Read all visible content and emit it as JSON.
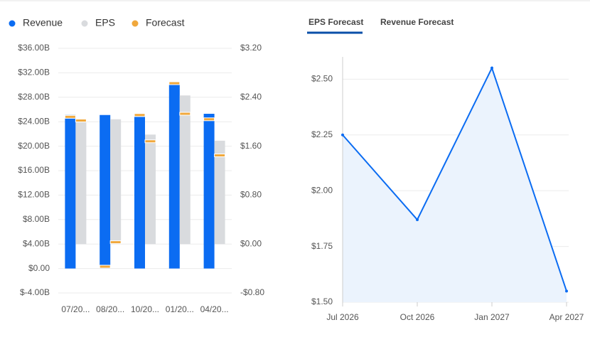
{
  "chart_data": [
    {
      "type": "bar",
      "categories": [
        "07/20...",
        "08/20...",
        "10/20...",
        "01/20...",
        "04/20..."
      ],
      "series": [
        {
          "name": "Revenue",
          "color": "#0b6cf2",
          "values": [
            25.1,
            25.1,
            24.8,
            30.2,
            25.3
          ]
        },
        {
          "name": "EPS",
          "color": "#d9dbde",
          "axis": "y2",
          "values": [
            2.03,
            2.04,
            1.79,
            2.43,
            1.69
          ]
        },
        {
          "name": "Forecast",
          "color": "#f0a83c",
          "values": [
            24.8,
            0.3,
            25.1,
            30.3,
            24.4
          ],
          "eps_values": [
            2.02,
            0.03,
            1.68,
            2.13,
            1.45
          ]
        }
      ],
      "ylim": [
        -4,
        36
      ],
      "yticks": [
        {
          "value": -4,
          "label": "$-4.00B"
        },
        {
          "value": 0,
          "label": "$0.00"
        },
        {
          "value": 4,
          "label": "$4.00B"
        },
        {
          "value": 8,
          "label": "$8.00B"
        },
        {
          "value": 12,
          "label": "$12.00B"
        },
        {
          "value": 16,
          "label": "$16.00B"
        },
        {
          "value": 20,
          "label": "$20.00B"
        },
        {
          "value": 24,
          "label": "$24.00B"
        },
        {
          "value": 28,
          "label": "$28.00B"
        },
        {
          "value": 32,
          "label": "$32.00B"
        },
        {
          "value": 36,
          "label": "$36.00B"
        }
      ],
      "y2lim": [
        -0.8,
        3.2
      ],
      "y2ticks": [
        {
          "value": -0.8,
          "label": "-$0.80"
        },
        {
          "value": 0,
          "label": "$0.00"
        },
        {
          "value": 0.8,
          "label": "$0.80"
        },
        {
          "value": 1.6,
          "label": "$1.60"
        },
        {
          "value": 2.4,
          "label": "$2.40"
        },
        {
          "value": 3.2,
          "label": "$3.20"
        }
      ],
      "grid": true
    },
    {
      "type": "area",
      "tabs": [
        "EPS Forecast",
        "Revenue Forecast"
      ],
      "categories": [
        "Jul 2026",
        "Oct 2026",
        "Jan 2027",
        "Apr 2027"
      ],
      "values": [
        2.25,
        1.87,
        2.55,
        1.55
      ],
      "color": "#0b6cf2",
      "fill": "#ebf3fd",
      "ylim": [
        1.5,
        2.6
      ],
      "yticks": [
        {
          "value": 1.5,
          "label": "$1.50"
        },
        {
          "value": 1.75,
          "label": "$1.75"
        },
        {
          "value": 2,
          "label": "$2.00"
        },
        {
          "value": 2.25,
          "label": "$2.25"
        },
        {
          "value": 2.5,
          "label": "$2.50"
        }
      ],
      "grid": true
    }
  ]
}
